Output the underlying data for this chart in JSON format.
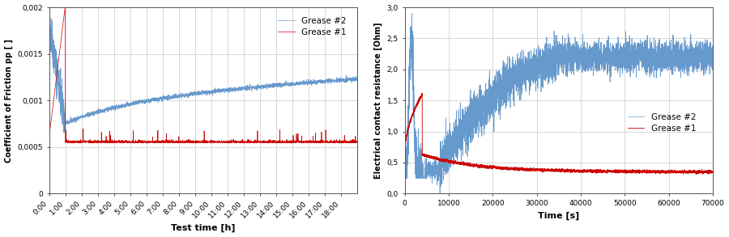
{
  "left": {
    "xlabel": "Test time [h]",
    "ylabel": "Coefficient of Friction pp [ ]",
    "xlim": [
      0,
      19
    ],
    "ylim": [
      0,
      0.002
    ],
    "yticks": [
      0,
      0.0005,
      0.001,
      0.0015,
      0.002
    ],
    "ytick_labels": [
      "0",
      "0,0005",
      "0,001",
      "0,0015",
      "0,002"
    ],
    "xtick_labels": [
      "0:00",
      "1:00",
      "2:00",
      "3:00",
      "4:00",
      "5:00",
      "6:00",
      "7:00",
      "8:00",
      "9:00",
      "10:00",
      "11:00",
      "12:00",
      "13:00",
      "14:00",
      "15:00",
      "16:00",
      "17:00",
      "18:00"
    ],
    "grease1_color": "#cc0000",
    "grease2_color": "#6699cc",
    "legend_grease2": "Grease #2",
    "legend_grease1": "Grease #1"
  },
  "right": {
    "xlabel": "Time [s]",
    "ylabel": "Electrical contact resistance [Ohm]",
    "xlim": [
      0,
      70000
    ],
    "ylim": [
      0,
      3.0
    ],
    "yticks": [
      0.0,
      0.5,
      1.0,
      1.5,
      2.0,
      2.5,
      3.0
    ],
    "ytick_labels": [
      "0,0",
      "0,5",
      "1,0",
      "1,5",
      "2,0",
      "2,5",
      "3,0"
    ],
    "xticks": [
      0,
      10000,
      20000,
      30000,
      40000,
      50000,
      60000,
      70000
    ],
    "xtick_labels": [
      "0",
      "10000",
      "20000",
      "30000",
      "40000",
      "50000",
      "60000",
      "70000"
    ],
    "grease1_color": "#cc0000",
    "grease2_color": "#6699cc",
    "legend_grease1": "Grease #1",
    "legend_grease2": "Grease #2"
  }
}
